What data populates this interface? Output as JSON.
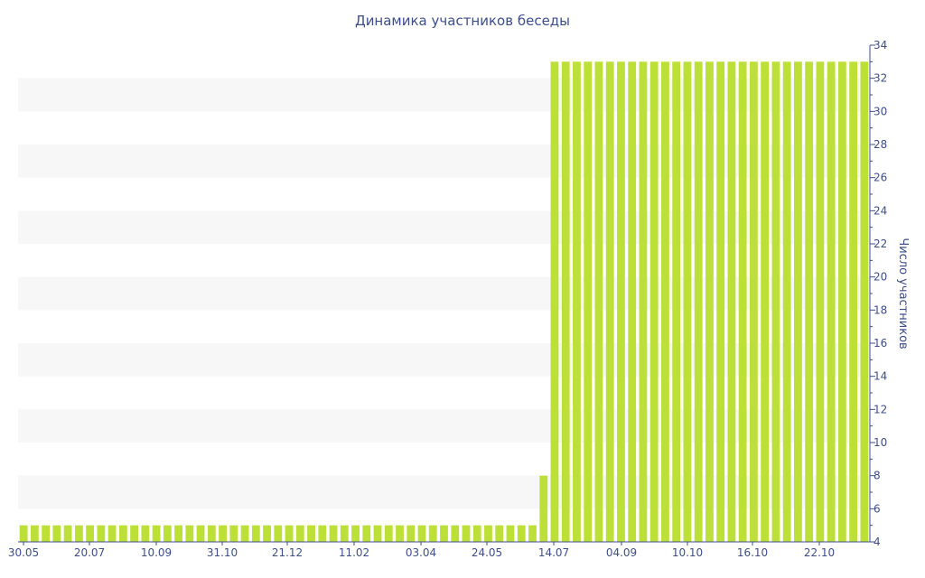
{
  "chart_data": {
    "type": "bar",
    "title": "Динамика участников беседы",
    "xlabel": "",
    "ylabel": "Число участников",
    "ylim": [
      4,
      34
    ],
    "yticks": [
      4,
      6,
      8,
      10,
      12,
      14,
      16,
      18,
      20,
      22,
      24,
      26,
      28,
      30,
      32,
      34
    ],
    "x_tick_labels": [
      "30.05",
      "20.07",
      "10.09",
      "31.10",
      "21.12",
      "11.02",
      "03.04",
      "24.05",
      "14.07",
      "04.09",
      "10.10",
      "16.10",
      "22.10"
    ],
    "grid": "alternating horizontal bands",
    "y_axis_side": "right",
    "series": [
      {
        "color": "#bde038",
        "values": [
          5,
          5,
          5,
          5,
          5,
          5,
          5,
          5,
          5,
          5,
          5,
          5,
          5,
          5,
          5,
          5,
          5,
          5,
          5,
          5,
          5,
          5,
          5,
          5,
          5,
          5,
          5,
          5,
          5,
          5,
          5,
          5,
          5,
          5,
          5,
          5,
          5,
          5,
          5,
          5,
          5,
          5,
          5,
          5,
          5,
          5,
          5,
          8,
          33,
          33,
          33,
          33,
          33,
          33,
          33,
          33,
          33,
          33,
          33,
          33,
          33,
          33,
          33,
          33,
          33,
          33,
          33,
          33,
          33,
          33,
          33,
          33,
          33,
          33,
          33,
          33,
          33
        ]
      }
    ]
  }
}
